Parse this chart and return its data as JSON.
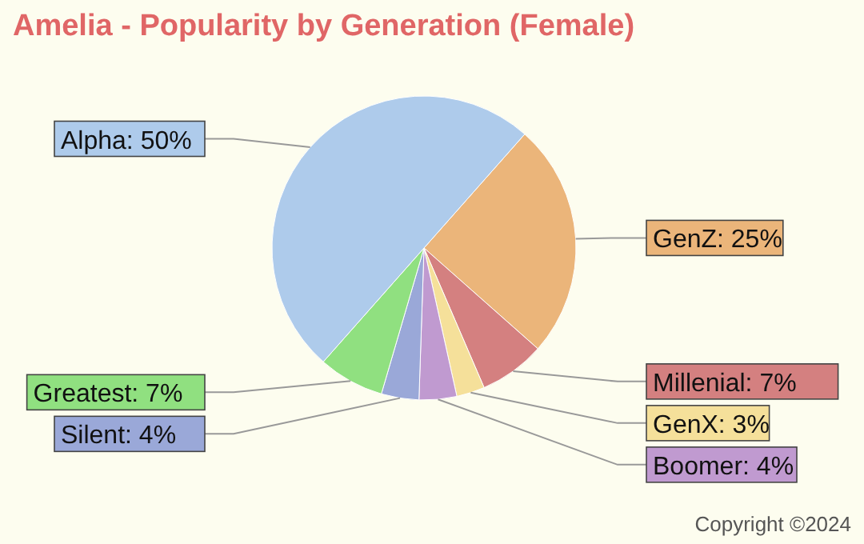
{
  "chart_data": {
    "type": "pie",
    "title": "Amelia - Popularity by Generation (Female)",
    "categories": [
      "GenZ",
      "Millenial",
      "GenX",
      "Boomer",
      "Silent",
      "Greatest",
      "Alpha"
    ],
    "values": [
      25,
      7,
      3,
      4,
      4,
      7,
      50
    ],
    "value_labels": [
      "25%",
      "7%",
      "3%",
      "4%",
      "4%",
      "7%",
      "50%"
    ],
    "colors": [
      "#ebb57a",
      "#d48080",
      "#f5e09a",
      "#c09ad0",
      "#9aa8d8",
      "#90e080",
      "#aecbeb"
    ],
    "annotations": [
      "Copyright ©2024"
    ]
  }
}
